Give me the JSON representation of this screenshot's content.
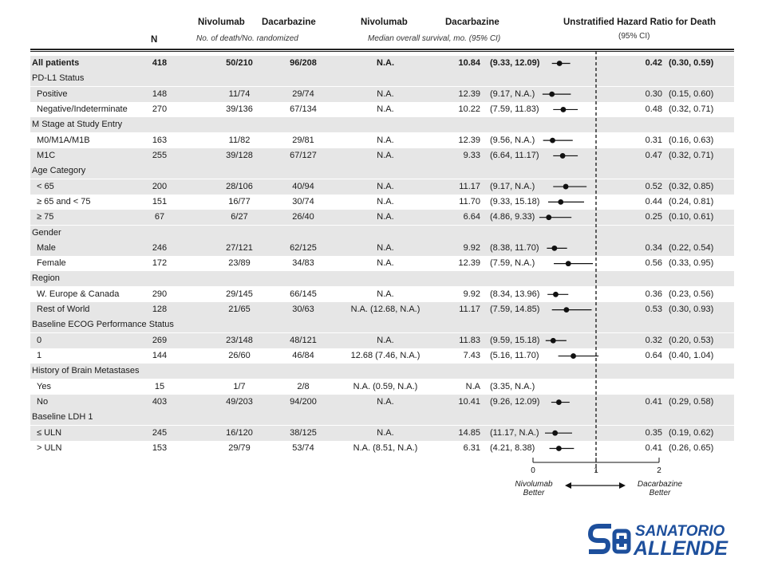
{
  "header": {
    "col_n": "N",
    "col_deaths_nivo": "Nivolumab",
    "col_deaths_dacar": "Dacarbazine",
    "deaths_sub": "No. of death/No. randomized",
    "col_os_nivo": "Nivolumab",
    "col_os_dacar": "Dacarbazine",
    "os_sub": "Median overall survival, mo. (95% CI)",
    "hr_title": "Unstratified Hazard Ratio for Death",
    "hr_sub": "(95% CI)"
  },
  "axis": {
    "ticks": [
      "0",
      "1",
      "2"
    ],
    "left_label_1": "Nivolumab",
    "left_label_2": "Better",
    "right_label_1": "Dacarbazine",
    "right_label_2": "Better"
  },
  "logo": {
    "line1": "SANATORIO",
    "line2": "ALLENDE",
    "colors": {
      "brand": "#1d4f9c"
    }
  },
  "chart_data": {
    "type": "forest",
    "xlim": [
      0,
      2
    ],
    "reference_line": 1,
    "rows": [
      {
        "label": "All patients",
        "kind": "overall",
        "n": "418",
        "d1": "50/210",
        "d2": "96/208",
        "m1": "N.A.",
        "m2": "10.84",
        "ci2": "(9.33, 12.09)",
        "hr": 0.42,
        "lo": 0.3,
        "hi": 0.59,
        "hr_text": "0.42",
        "hr_ci": "(0.30, 0.59)"
      },
      {
        "label": "PD-L1 Status",
        "kind": "group"
      },
      {
        "label": "Positive",
        "kind": "sub",
        "n": "148",
        "d1": "11/74",
        "d2": "29/74",
        "m1": "N.A.",
        "m2": "12.39",
        "ci2": "(9.17, N.A.)",
        "hr": 0.3,
        "lo": 0.15,
        "hi": 0.6,
        "hr_text": "0.30",
        "hr_ci": "(0.15, 0.60)"
      },
      {
        "label": "Negative/Indeterminate",
        "kind": "sub",
        "n": "270",
        "d1": "39/136",
        "d2": "67/134",
        "m1": "N.A.",
        "m2": "10.22",
        "ci2": "(7.59, 11.83)",
        "hr": 0.48,
        "lo": 0.32,
        "hi": 0.71,
        "hr_text": "0.48",
        "hr_ci": "(0.32, 0.71)"
      },
      {
        "label": "M Stage at Study Entry",
        "kind": "group"
      },
      {
        "label": "M0/M1A/M1B",
        "kind": "sub",
        "n": "163",
        "d1": "11/82",
        "d2": "29/81",
        "m1": "N.A.",
        "m2": "12.39",
        "ci2": "(9.56, N.A.)",
        "hr": 0.31,
        "lo": 0.16,
        "hi": 0.63,
        "hr_text": "0.31",
        "hr_ci": "(0.16, 0.63)"
      },
      {
        "label": "M1C",
        "kind": "sub",
        "n": "255",
        "d1": "39/128",
        "d2": "67/127",
        "m1": "N.A.",
        "m2": "9.33",
        "ci2": "(6.64, 11.17)",
        "hr": 0.47,
        "lo": 0.32,
        "hi": 0.71,
        "hr_text": "0.47",
        "hr_ci": "(0.32, 0.71)"
      },
      {
        "label": "Age Category",
        "kind": "group"
      },
      {
        "label": "< 65",
        "kind": "sub",
        "n": "200",
        "d1": "28/106",
        "d2": "40/94",
        "m1": "N.A.",
        "m2": "11.17",
        "ci2": "(9.17, N.A.)",
        "hr": 0.52,
        "lo": 0.32,
        "hi": 0.85,
        "hr_text": "0.52",
        "hr_ci": "(0.32, 0.85)"
      },
      {
        "label": "≥ 65 and < 75",
        "kind": "sub",
        "n": "151",
        "d1": "16/77",
        "d2": "30/74",
        "m1": "N.A.",
        "m2": "11.70",
        "ci2": "(9.33, 15.18)",
        "hr": 0.44,
        "lo": 0.24,
        "hi": 0.81,
        "hr_text": "0.44",
        "hr_ci": "(0.24, 0.81)"
      },
      {
        "label": "≥ 75",
        "kind": "sub",
        "n": "67",
        "d1": "6/27",
        "d2": "26/40",
        "m1": "N.A.",
        "m2": "6.64",
        "ci2": "(4.86, 9.33)",
        "hr": 0.25,
        "lo": 0.1,
        "hi": 0.61,
        "hr_text": "0.25",
        "hr_ci": "(0.10, 0.61)"
      },
      {
        "label": "Gender",
        "kind": "group"
      },
      {
        "label": "Male",
        "kind": "sub",
        "n": "246",
        "d1": "27/121",
        "d2": "62/125",
        "m1": "N.A.",
        "m2": "9.92",
        "ci2": "(8.38, 11.70)",
        "hr": 0.34,
        "lo": 0.22,
        "hi": 0.54,
        "hr_text": "0.34",
        "hr_ci": "(0.22, 0.54)"
      },
      {
        "label": "Female",
        "kind": "sub",
        "n": "172",
        "d1": "23/89",
        "d2": "34/83",
        "m1": "N.A.",
        "m2": "12.39",
        "ci2": "(7.59, N.A.)",
        "hr": 0.56,
        "lo": 0.33,
        "hi": 0.95,
        "hr_text": "0.56",
        "hr_ci": "(0.33, 0.95)"
      },
      {
        "label": "Region",
        "kind": "group"
      },
      {
        "label": "W. Europe & Canada",
        "kind": "sub",
        "n": "290",
        "d1": "29/145",
        "d2": "66/145",
        "m1": "N.A.",
        "m2": "9.92",
        "ci2": "(8.34, 13.96)",
        "hr": 0.36,
        "lo": 0.23,
        "hi": 0.56,
        "hr_text": "0.36",
        "hr_ci": "(0.23, 0.56)"
      },
      {
        "label": "Rest of World",
        "kind": "sub",
        "n": "128",
        "d1": "21/65",
        "d2": "30/63",
        "m1": "N.A. (12.68, N.A.)",
        "m2": "11.17",
        "ci2": "(7.59, 14.85)",
        "hr": 0.53,
        "lo": 0.3,
        "hi": 0.93,
        "hr_text": "0.53",
        "hr_ci": "(0.30, 0.93)"
      },
      {
        "label": "Baseline ECOG Performance Status",
        "kind": "group"
      },
      {
        "label": "0",
        "kind": "sub",
        "n": "269",
        "d1": "23/148",
        "d2": "48/121",
        "m1": "N.A.",
        "m2": "11.83",
        "ci2": "(9.59, 15.18)",
        "hr": 0.32,
        "lo": 0.2,
        "hi": 0.53,
        "hr_text": "0.32",
        "hr_ci": "(0.20, 0.53)"
      },
      {
        "label": "1",
        "kind": "sub",
        "n": "144",
        "d1": "26/60",
        "d2": "46/84",
        "m1": "12.68 (7.46, N.A.)",
        "m2": "7.43",
        "ci2": "(5.16, 11.70)",
        "hr": 0.64,
        "lo": 0.4,
        "hi": 1.04,
        "hr_text": "0.64",
        "hr_ci": "(0.40, 1.04)"
      },
      {
        "label": "History of Brain Metastases",
        "kind": "group"
      },
      {
        "label": "Yes",
        "kind": "sub",
        "n": "15",
        "d1": "1/7",
        "d2": "2/8",
        "m1": "N.A. (0.59, N.A.)",
        "m2": "N.A",
        "ci2": "(3.35, N.A.)",
        "hr": null,
        "lo": null,
        "hi": null,
        "hr_text": "",
        "hr_ci": ""
      },
      {
        "label": "No",
        "kind": "sub",
        "n": "403",
        "d1": "49/203",
        "d2": "94/200",
        "m1": "N.A.",
        "m2": "10.41",
        "ci2": "(9.26, 12.09)",
        "hr": 0.41,
        "lo": 0.29,
        "hi": 0.58,
        "hr_text": "0.41",
        "hr_ci": "(0.29, 0.58)"
      },
      {
        "label": "Baseline LDH 1",
        "kind": "group"
      },
      {
        "label": "≤ ULN",
        "kind": "sub",
        "n": "245",
        "d1": "16/120",
        "d2": "38/125",
        "m1": "N.A.",
        "m2": "14.85",
        "ci2": "(11.17, N.A.)",
        "hr": 0.35,
        "lo": 0.19,
        "hi": 0.62,
        "hr_text": "0.35",
        "hr_ci": "(0.19, 0.62)"
      },
      {
        "label": "> ULN",
        "kind": "sub",
        "n": "153",
        "d1": "29/79",
        "d2": "53/74",
        "m1": "N.A. (8.51, N.A.)",
        "m2": "6.31",
        "ci2": "(4.21, 8.38)",
        "hr": 0.41,
        "lo": 0.26,
        "hi": 0.65,
        "hr_text": "0.41",
        "hr_ci": "(0.26, 0.65)"
      }
    ]
  }
}
